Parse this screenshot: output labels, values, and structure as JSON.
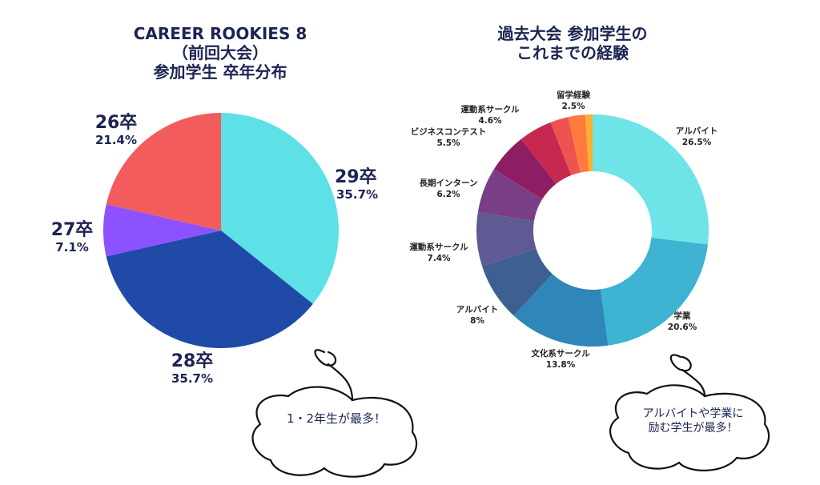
{
  "left_title": [
    "CAREER ROOKIES 8",
    "（前回大会）",
    "参加学生 卒年分布"
  ],
  "right_title": [
    "過去大会 参加学生の",
    "これまでの経験"
  ],
  "bubble_left": "1・2年生が最多！",
  "bubble_right": [
    "アルバイトや学業に",
    "励む学生が最多！"
  ],
  "chart_data": [
    {
      "type": "pie",
      "title": "CAREER ROOKIES 8（前回大会）参加学生 卒年分布",
      "slices": [
        {
          "label": "29卒",
          "value": 35.7,
          "pct": "35.7%",
          "color": "#5de0e6"
        },
        {
          "label": "28卒",
          "value": 35.7,
          "pct": "35.7%",
          "color": "#1f4aa8"
        },
        {
          "label": "27卒",
          "value": 7.1,
          "pct": "7.1%",
          "color": "#8c52ff"
        },
        {
          "label": "26卒",
          "value": 21.4,
          "pct": "21.4%",
          "color": "#f25c5c"
        }
      ]
    },
    {
      "type": "pie",
      "title": "過去大会 参加学生のこれまでの経験",
      "slices": [
        {
          "label": "アルバイト",
          "value": 26.5,
          "pct": "26.5%",
          "color": "#6ee3e8"
        },
        {
          "label": "学業",
          "value": 20.6,
          "pct": "20.6%",
          "color": "#3fb3d2"
        },
        {
          "label": "文化系サークル",
          "value": 13.8,
          "pct": "13.8%",
          "color": "#2f86b8"
        },
        {
          "label": "アルバイト",
          "value": 8,
          "pct": "8%",
          "color": "#3d5f91"
        },
        {
          "label": "運動系サークル",
          "value": 7.4,
          "pct": "7.4%",
          "color": "#5e5a94"
        },
        {
          "label": "長期インターン",
          "value": 6.2,
          "pct": "6.2%",
          "color": "#7a3e86"
        },
        {
          "label": "ビジネスコンテスト",
          "value": 5.5,
          "pct": "5.5%",
          "color": "#8e1e64"
        },
        {
          "label": "運動系サークル",
          "value": 4.6,
          "pct": "4.6%",
          "color": "#c7284f"
        },
        {
          "label": "留学経験",
          "value": 2.5,
          "pct": "2.5%",
          "color": "#ef5350"
        },
        {
          "label": "",
          "value": 2.3,
          "pct": "",
          "color": "#ff7a3d"
        },
        {
          "label": "",
          "value": 1.0,
          "pct": "",
          "color": "#ffae2e"
        }
      ]
    }
  ]
}
